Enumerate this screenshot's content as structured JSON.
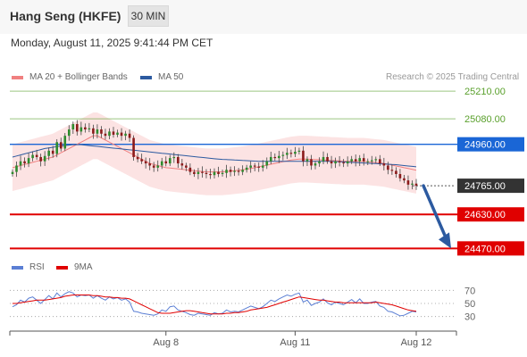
{
  "header": {
    "title": "Hang Seng (HKFE)",
    "interval": "30 MIN"
  },
  "datetime": "Monday, August 11, 2025 9:41:44 PM CET",
  "legend": {
    "ma20_bb": {
      "label": "MA 20 + Bollinger Bands",
      "color": "#f08080"
    },
    "ma50": {
      "label": "MA 50",
      "color": "#2c5aa0"
    }
  },
  "copyright": "Research © 2025 Trading Central",
  "rsi_legend": {
    "rsi": {
      "label": "RSI",
      "color": "#5b7fd4"
    },
    "ma9": {
      "label": "9MA",
      "color": "#e00000"
    }
  },
  "chart_data": [
    {
      "type": "candlestick",
      "ylim": [
        24400,
        25240
      ],
      "levels": [
        {
          "label": "25210.00",
          "value": 25210,
          "kind": "target",
          "color": "#5aa02c"
        },
        {
          "label": "25080.00",
          "value": 25080,
          "kind": "target",
          "color": "#5aa02c"
        },
        {
          "label": "24960.00",
          "value": 24960,
          "kind": "pivot",
          "color": "#1a66d6"
        },
        {
          "label": "24765.00",
          "value": 24765,
          "kind": "last",
          "color": "#333333"
        },
        {
          "label": "24630.00",
          "value": 24630,
          "kind": "support",
          "color": "#e00000"
        },
        {
          "label": "24470.00",
          "value": 24470,
          "kind": "support",
          "color": "#e00000"
        }
      ],
      "x_ticks": [
        "Aug 8",
        "Aug 11",
        "Aug 12"
      ],
      "x_tick_index": [
        38,
        70,
        100
      ],
      "close": [
        24830,
        24860,
        24880,
        24870,
        24895,
        24910,
        24900,
        24880,
        24905,
        24930,
        24915,
        24970,
        24940,
        25000,
        25030,
        25055,
        25020,
        25040,
        25030,
        25035,
        25010,
        25030,
        25010,
        25000,
        25020,
        25005,
        25015,
        25000,
        25010,
        24990,
        24900,
        24890,
        24880,
        24870,
        24860,
        24850,
        24860,
        24880,
        24870,
        24895,
        24900,
        24870,
        24860,
        24850,
        24830,
        24820,
        24830,
        24825,
        24820,
        24815,
        24830,
        24820,
        24825,
        24840,
        24830,
        24835,
        24830,
        24840,
        24850,
        24860,
        24855,
        24850,
        24860,
        24880,
        24900,
        24895,
        24905,
        24910,
        24920,
        24915,
        24925,
        24930,
        24880,
        24890,
        24860,
        24870,
        24880,
        24900,
        24880,
        24870,
        24880,
        24875,
        24870,
        24880,
        24890,
        24880,
        24895,
        24880,
        24880,
        24885,
        24890,
        24870,
        24860,
        24840,
        24835,
        24820,
        24800,
        24790,
        24770,
        24775,
        24765
      ],
      "ma20": [
        24850,
        24855,
        24860,
        24865,
        24870,
        24875,
        24880,
        24885,
        24890,
        24895,
        24900,
        24910,
        24920,
        24930,
        24940,
        24950,
        24960,
        24970,
        24980,
        24990,
        25000,
        25000,
        24990,
        24980,
        24970,
        24960,
        24950,
        24940,
        24930,
        24920,
        24910,
        24900,
        24890,
        24880,
        24870,
        24865,
        24860,
        24855,
        24850,
        24848,
        24846,
        24844,
        24842,
        24840,
        24838,
        24836,
        24834,
        24832,
        24830,
        24830,
        24830,
        24830,
        24830,
        24832,
        24834,
        24836,
        24838,
        24840,
        24843,
        24846,
        24850,
        24854,
        24858,
        24862,
        24866,
        24870,
        24874,
        24878,
        24882,
        24886,
        24888,
        24890,
        24890,
        24890,
        24889,
        24888,
        24887,
        24886,
        24885,
        24884,
        24883,
        24882,
        24881,
        24880,
        24880,
        24880,
        24880,
        24880,
        24878,
        24876,
        24874,
        24872,
        24870,
        24866,
        24862,
        24858,
        24854,
        24850,
        24846,
        24842,
        24838
      ],
      "ma50": [
        24900,
        24905,
        24910,
        24915,
        24920,
        24925,
        24930,
        24935,
        24940,
        24943,
        24946,
        24949,
        24952,
        24954,
        24956,
        24958,
        24958,
        24958,
        24956,
        24954,
        24952,
        24950,
        24948,
        24946,
        24944,
        24942,
        24940,
        24938,
        24936,
        24934,
        24932,
        24930,
        24928,
        24926,
        24924,
        24922,
        24920,
        24918,
        24916,
        24914,
        24912,
        24910,
        24908,
        24906,
        24904,
        24902,
        24900,
        24898,
        24896,
        24894,
        24892,
        24890,
        24889,
        24888,
        24887,
        24886,
        24885,
        24884,
        24883,
        24882,
        24881,
        24880,
        24880,
        24880,
        24880,
        24880,
        24880,
        24880,
        24880,
        24880,
        24880,
        24880,
        24880,
        24880,
        24880,
        24880,
        24880,
        24880,
        24880,
        24880,
        24879,
        24878,
        24877,
        24876,
        24875,
        24874,
        24873,
        24872,
        24871,
        24870,
        24869,
        24868,
        24867,
        24866,
        24865,
        24864,
        24862,
        24860,
        24858,
        24856,
        24854
      ],
      "bb_width": 110
    },
    {
      "type": "line",
      "ylim": [
        20,
        80
      ],
      "y_ticks": [
        70,
        50,
        30
      ],
      "rsi": [
        45,
        48,
        55,
        52,
        58,
        60,
        55,
        50,
        56,
        62,
        57,
        66,
        60,
        65,
        68,
        66,
        60,
        63,
        62,
        63,
        58,
        62,
        58,
        55,
        60,
        57,
        59,
        55,
        57,
        52,
        38,
        37,
        35,
        34,
        33,
        32,
        34,
        40,
        38,
        45,
        46,
        40,
        38,
        36,
        33,
        32,
        35,
        34,
        33,
        32,
        36,
        34,
        35,
        40,
        37,
        38,
        37,
        40,
        43,
        46,
        44,
        42,
        45,
        50,
        55,
        53,
        57,
        60,
        63,
        61,
        64,
        66,
        52,
        55,
        47,
        50,
        52,
        57,
        51,
        48,
        52,
        50,
        48,
        52,
        56,
        51,
        57,
        50,
        50,
        52,
        53,
        46,
        44,
        38,
        37,
        34,
        31,
        32,
        35,
        38,
        37
      ],
      "ma9": [
        50,
        50,
        51,
        52,
        53,
        54,
        55,
        55,
        55,
        56,
        57,
        58,
        59,
        61,
        62,
        63,
        63,
        63,
        63,
        63,
        62,
        62,
        61,
        60,
        60,
        59,
        59,
        58,
        58,
        57,
        54,
        51,
        48,
        45,
        42,
        39,
        36,
        35,
        35,
        35,
        36,
        37,
        38,
        39,
        39,
        38,
        37,
        36,
        35,
        34,
        34,
        34,
        34,
        35,
        35,
        36,
        36,
        37,
        38,
        40,
        41,
        42,
        43,
        44,
        46,
        48,
        50,
        52,
        54,
        56,
        58,
        60,
        59,
        58,
        57,
        56,
        55,
        55,
        54,
        53,
        52,
        52,
        51,
        51,
        51,
        51,
        51,
        51,
        51,
        51,
        52,
        51,
        50,
        49,
        48,
        46,
        44,
        42,
        40,
        39,
        38
      ]
    }
  ]
}
